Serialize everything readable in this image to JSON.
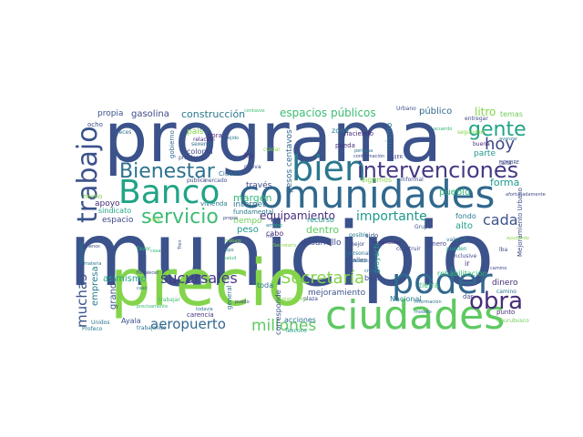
{
  "words": [
    {
      "text": "municipio",
      "color": "#3b528b",
      "vertical": false
    },
    {
      "text": "programa",
      "color": "#3b528b",
      "vertical": false
    },
    {
      "text": "precio",
      "color": "#84d44b",
      "vertical": false
    },
    {
      "text": "ciudades",
      "color": "#5ec962",
      "vertical": false
    },
    {
      "text": "comunidades",
      "color": "#31688e",
      "vertical": false
    },
    {
      "text": "Banco",
      "color": "#20a486",
      "vertical": false
    },
    {
      "text": "poder",
      "color": "#31688e",
      "vertical": false
    },
    {
      "text": "bien",
      "color": "#2a788e",
      "vertical": false
    },
    {
      "text": "trabajo",
      "color": "#3b528b",
      "vertical": true
    },
    {
      "text": "intervenciones",
      "color": "#443983",
      "vertical": false
    },
    {
      "text": "Bienestar",
      "color": "#2c728e",
      "vertical": false
    },
    {
      "text": "servicio",
      "color": "#3dbc74",
      "vertical": false
    },
    {
      "text": "gente",
      "color": "#20a486",
      "vertical": false
    },
    {
      "text": "obra",
      "color": "#472d7b",
      "vertical": false
    },
    {
      "text": "hoy",
      "color": "#3e4989",
      "vertical": false
    },
    {
      "text": "cada",
      "color": "#3b528b",
      "vertical": false
    },
    {
      "text": "Secretaría",
      "color": "#84d44b",
      "vertical": false
    },
    {
      "text": "sucursales",
      "color": "#443983",
      "vertical": false
    },
    {
      "text": "aeropuerto",
      "color": "#31688e",
      "vertical": false
    },
    {
      "text": "millones",
      "color": "#5ec962",
      "vertical": false
    },
    {
      "text": "muchas",
      "color": "#3b528b",
      "vertical": true
    },
    {
      "text": "equipamiento",
      "color": "#472d7b",
      "vertical": false
    },
    {
      "text": "importante",
      "color": "#1f988b",
      "vertical": false
    },
    {
      "text": "espacios públicos",
      "color": "#3dbc74",
      "vertical": false
    },
    {
      "text": "construcción",
      "color": "#2a788e",
      "vertical": false
    },
    {
      "text": "gasolina",
      "color": "#3e4989",
      "vertical": false
    },
    {
      "text": "propia",
      "color": "#3b528b",
      "vertical": false
    },
    {
      "text": "litro",
      "color": "#84d44b",
      "vertical": false
    },
    {
      "text": "público",
      "color": "#31688e",
      "vertical": false
    },
    {
      "text": "forma",
      "color": "#1f988b",
      "vertical": false
    },
    {
      "text": "pueblo",
      "color": "#35b779",
      "vertical": false
    },
    {
      "text": "alto",
      "color": "#20a486",
      "vertical": false
    },
    {
      "text": "dinero",
      "color": "#472d7b",
      "vertical": false
    },
    {
      "text": "dentro",
      "color": "#5ec962",
      "vertical": false
    },
    {
      "text": "desarrollo",
      "color": "#3e4989",
      "vertical": false
    },
    {
      "text": "asimismo",
      "color": "#20a486",
      "vertical": false
    },
    {
      "text": "empresa",
      "color": "#287c8e",
      "vertical": true
    },
    {
      "text": "grande",
      "color": "#3b528b",
      "vertical": true
    },
    {
      "text": "margen",
      "color": "#35b779",
      "vertical": false
    },
    {
      "text": "espacio",
      "color": "#3e4989",
      "vertical": false
    },
    {
      "text": "apoyo",
      "color": "#472d7b",
      "vertical": false
    },
    {
      "text": "internet",
      "color": "#2c728e",
      "vertical": false
    },
    {
      "text": "tiempo",
      "color": "#6ccd5a",
      "vertical": false
    },
    {
      "text": "peso",
      "color": "#1f988b",
      "vertical": false
    },
    {
      "text": "mejoramiento",
      "color": "#3b528b",
      "vertical": false
    },
    {
      "text": "Nacional",
      "color": "#287c8e",
      "vertical": false
    },
    {
      "text": "acciones",
      "color": "#2c728e",
      "vertical": false
    },
    {
      "text": "Ayala",
      "color": "#3b528b",
      "vertical": false
    },
    {
      "text": "toda",
      "color": "#2c728e",
      "vertical": false
    },
    {
      "text": "bajo",
      "color": "#3e4989",
      "vertical": false
    },
    {
      "text": "tierra",
      "color": "#3dbc74",
      "vertical": false
    },
    {
      "text": "fondo",
      "color": "#2a788e",
      "vertical": false
    },
    {
      "text": "parte",
      "color": "#1f988b",
      "vertical": false
    },
    {
      "text": "mismo",
      "color": "#2a788e",
      "vertical": true
    },
    {
      "text": "zona",
      "color": "#287c8e",
      "vertical": false
    },
    {
      "text": "través",
      "color": "#3e4989",
      "vertical": false
    },
    {
      "text": "país",
      "color": "#84d44b",
      "vertical": false
    },
    {
      "text": "hora",
      "color": "#472d7b",
      "vertical": false
    },
    {
      "text": "colonia",
      "color": "#3e4989",
      "vertical": false
    },
    {
      "text": "mercado",
      "color": "#3b528b",
      "vertical": false
    },
    {
      "text": "sexenio",
      "color": "#2c728e",
      "vertical": false
    },
    {
      "text": "pública",
      "color": "#3e4989",
      "vertical": false
    },
    {
      "text": "vivienda",
      "color": "#2a788e",
      "vertical": false
    },
    {
      "text": "sindicato",
      "color": "#20a486",
      "vertical": false
    },
    {
      "text": "temas",
      "color": "#6ccd5a",
      "vertical": false
    },
    {
      "text": "pesos centavos",
      "color": "#31688e",
      "vertical": true
    },
    {
      "text": "recurso",
      "color": "#1f988b",
      "vertical": false
    },
    {
      "text": "pueda",
      "color": "#472d7b",
      "vertical": false
    },
    {
      "text": "haciendo",
      "color": "#472d7b",
      "vertical": false
    },
    {
      "text": "digamos",
      "color": "#84d44b",
      "vertical": false
    },
    {
      "text": "calles",
      "color": "#3e4989",
      "vertical": false
    },
    {
      "text": "personal",
      "color": "#2c728e",
      "vertical": false
    },
    {
      "text": "sido",
      "color": "#3b528b",
      "vertical": false
    },
    {
      "text": "posible",
      "color": "#2a788e",
      "vertical": false
    },
    {
      "text": "proyecto",
      "color": "#20a486",
      "vertical": true
    },
    {
      "text": "corresponde",
      "color": "#3b528b",
      "vertical": true
    },
    {
      "text": "general",
      "color": "#2c728e",
      "vertical": true
    },
    {
      "text": "cabo",
      "color": "#472d7b",
      "vertical": false
    },
    {
      "text": "plaza",
      "color": "#3e4989",
      "vertical": false
    },
    {
      "text": "carencia",
      "color": "#472d7b",
      "vertical": false
    },
    {
      "text": "Unidos",
      "color": "#2c728e",
      "vertical": false
    },
    {
      "text": "Profeco",
      "color": "#287c8e",
      "vertical": false
    },
    {
      "text": "trabajar",
      "color": "#3dbc74",
      "vertical": false
    },
    {
      "text": "Texcoco",
      "color": "#1f988b",
      "vertical": false
    },
    {
      "text": "enero",
      "color": "#3e4989",
      "vertical": false
    },
    {
      "text": "valores",
      "color": "#2a788e",
      "vertical": false
    },
    {
      "text": "pueden",
      "color": "#20a486",
      "vertical": false
    },
    {
      "text": "rehabilitación",
      "color": "#35b779",
      "vertical": false
    },
    {
      "text": "camino",
      "color": "#2c728e",
      "vertical": false
    },
    {
      "text": "punto",
      "color": "#472d7b",
      "vertical": false
    },
    {
      "text": "Churubusco",
      "color": "#6ccd5a",
      "vertical": false
    },
    {
      "text": "Mejoramiento Urbano",
      "color": "#3e4989",
      "vertical": true
    },
    {
      "text": "buena",
      "color": "#472d7b",
      "vertical": false
    },
    {
      "text": "ocho",
      "color": "#3e4989",
      "vertical": false
    },
    {
      "text": "veces",
      "color": "#2c728e",
      "vertical": false
    },
    {
      "text": "gobierno",
      "color": "#31688e",
      "vertical": true
    },
    {
      "text": "relación",
      "color": "#472d7b",
      "vertical": false
    },
    {
      "text": "segundad",
      "color": "#84d44b",
      "vertical": false
    },
    {
      "text": "entregar",
      "color": "#3e4989",
      "vertical": false
    },
    {
      "text": "Urbano",
      "color": "#3b528b",
      "vertical": false
    },
    {
      "text": "Ciudad",
      "color": "#2c728e",
      "vertical": false
    },
    {
      "text": "ley",
      "color": "#472d7b",
      "vertical": false
    },
    {
      "text": "nueva",
      "color": "#3e4989",
      "vertical": false
    },
    {
      "text": "centavos",
      "color": "#3dbc74",
      "vertical": false
    },
    {
      "text": "ejido",
      "color": "#2a788e",
      "vertical": false
    },
    {
      "text": "informal",
      "color": "#3e4989",
      "vertical": false
    },
    {
      "text": "Grupo",
      "color": "#3b528b",
      "vertical": false
    },
    {
      "text": "fundamental",
      "color": "#2a788e",
      "vertical": false
    },
    {
      "text": "ejemplo",
      "color": "#2c728e",
      "vertical": true
    },
    {
      "text": "menos",
      "color": "#3e4989",
      "vertical": false
    },
    {
      "text": "materia",
      "color": "#2a788e",
      "vertical": false
    },
    {
      "text": "favor",
      "color": "#35b779",
      "vertical": false
    },
    {
      "text": "fortalecer",
      "color": "#3e4989",
      "vertical": false
    },
    {
      "text": "hecho",
      "color": "#84d44b",
      "vertical": false
    },
    {
      "text": "mejor",
      "color": "#3e4989",
      "vertical": false
    },
    {
      "text": "construir",
      "color": "#3e4989",
      "vertical": false
    },
    {
      "text": "decisión",
      "color": "#2c728e",
      "vertical": false
    },
    {
      "text": "autoridades",
      "color": "#472d7b",
      "vertical": false
    },
    {
      "text": "inclusive",
      "color": "#3e4989",
      "vertical": false
    },
    {
      "text": "ir",
      "color": "#472d7b",
      "vertical": false
    },
    {
      "text": "dar",
      "color": "#3e4989",
      "vertical": false
    },
    {
      "text": "lba",
      "color": "#3e4989",
      "vertical": false
    },
    {
      "text": "avanzar",
      "color": "#2c728e",
      "vertical": false
    },
    {
      "text": "falta",
      "color": "#3e4989",
      "vertical": false
    },
    {
      "text": "trabajando",
      "color": "#2c728e",
      "vertical": false
    },
    {
      "text": "puedo",
      "color": "#3e4989",
      "vertical": false
    },
    {
      "text": "todavía",
      "color": "#2c728e",
      "vertical": false
    },
    {
      "text": "MUJER",
      "color": "#3e4989",
      "vertical": false
    },
    {
      "text": "información",
      "color": "#2c728e",
      "vertical": false
    },
    {
      "text": "afortunadamente",
      "color": "#3e4989",
      "vertical": false
    },
    {
      "text": "camino",
      "color": "#3e4989",
      "vertical": false
    },
    {
      "text": "persona",
      "color": "#2c728e",
      "vertical": false
    },
    {
      "text": "conformación",
      "color": "#3e4989",
      "vertical": false
    },
    {
      "text": "problema",
      "color": "#3e4989",
      "vertical": false
    },
    {
      "text": "cuidar",
      "color": "#84d44b",
      "vertical": false
    },
    {
      "text": "piso",
      "color": "#35b779",
      "vertical": false
    },
    {
      "text": "mil",
      "color": "#3e4989",
      "vertical": false
    },
    {
      "text": "HOMBRE",
      "color": "#3e4989",
      "vertical": false
    },
    {
      "text": "arriba",
      "color": "#2a788e",
      "vertical": false
    },
    {
      "text": "libre",
      "color": "#84d44b",
      "vertical": false
    },
    {
      "text": "tipo",
      "color": "#2a788e",
      "vertical": false
    },
    {
      "text": "casa",
      "color": "#35b779",
      "vertical": false
    },
    {
      "text": "trabajo",
      "color": "#84d44b",
      "vertical": false
    },
    {
      "text": "salud",
      "color": "#35b779",
      "vertical": false
    },
    {
      "text": "precisamente",
      "color": "#35b779",
      "vertical": false
    },
    {
      "text": "ayudando",
      "color": "#84d44b",
      "vertical": false
    },
    {
      "text": "modelo",
      "color": "#2c728e",
      "vertical": false
    },
    {
      "text": "propia",
      "color": "#3e4989",
      "vertical": false
    },
    {
      "text": "crédito",
      "color": "#2c728e",
      "vertical": false
    },
    {
      "text": "caso",
      "color": "#2c728e",
      "vertical": false
    },
    {
      "text": "Tren",
      "color": "#3e4989",
      "vertical": true
    },
    {
      "text": "plataforma",
      "color": "#84d44b",
      "vertical": false
    },
    {
      "text": "acuerdo",
      "color": "#35b779",
      "vertical": false
    },
    {
      "text": "Secretario",
      "color": "#84d44b",
      "vertical": false
    }
  ]
}
